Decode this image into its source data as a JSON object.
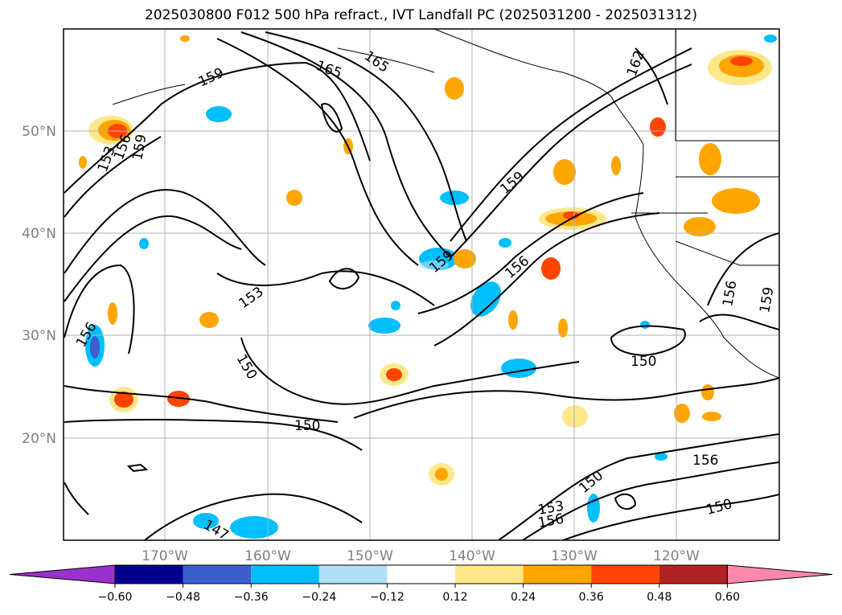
{
  "title": "2025030800 F012 500 hPa refract., IVT Landfall PC (2025031200 - 2025031312)",
  "lat_labels": [
    "50°N",
    "40°N",
    "30°N",
    "20°N"
  ],
  "lon_labels": [
    "170°W",
    "160°W",
    "150°W",
    "140°W",
    "130°W",
    "120°W"
  ],
  "colorbar": {
    "ticks": [
      "−0.60",
      "−0.48",
      "−0.36",
      "−0.24",
      "−0.12",
      "0.12",
      "0.24",
      "0.36",
      "0.48",
      "0.60"
    ],
    "colors": [
      "#9932cc",
      "#00008b",
      "#3a5fcd",
      "#00bfff",
      "#b0e0f8",
      "#ffffff",
      "#ffe88a",
      "#ffa500",
      "#ff4500",
      "#b22222",
      "#ff88aa"
    ]
  },
  "contour_labels": [
    "165",
    "165",
    "159",
    "162",
    "159",
    "153",
    "156",
    "159",
    "159",
    "156",
    "153",
    "156",
    "150",
    "150",
    "150",
    "150",
    "156",
    "153",
    "156",
    "150",
    "159",
    "156",
    "147"
  ],
  "colors": {
    "contour": "#000000",
    "grid": "#b0b0b0",
    "coast": "#000000"
  }
}
